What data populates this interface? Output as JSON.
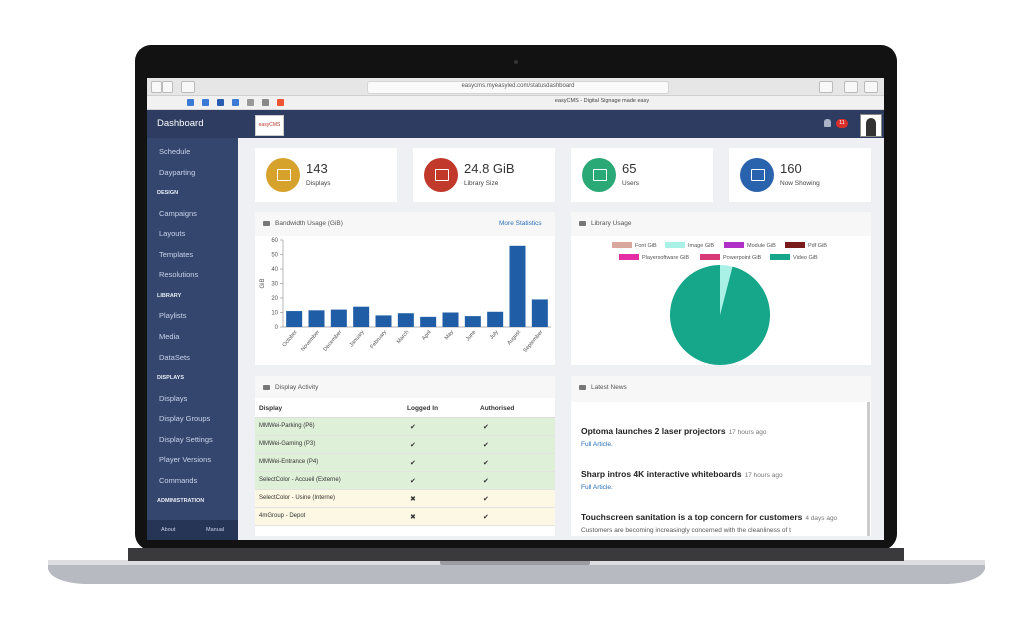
{
  "browser": {
    "url": "easycms.myeasyled.com/statusdashboard",
    "tab_title": "easyCMS - Digital Signage made easy"
  },
  "header": {
    "title": "Dashboard",
    "logo": "easyCMS",
    "notifications": 11
  },
  "sidebar": {
    "items": [
      {
        "label": "Schedule"
      },
      {
        "label": "Dayparting"
      },
      {
        "label": "DESIGN",
        "section": true
      },
      {
        "label": "Campaigns"
      },
      {
        "label": "Layouts"
      },
      {
        "label": "Templates"
      },
      {
        "label": "Resolutions"
      },
      {
        "label": "LIBRARY",
        "section": true
      },
      {
        "label": "Playlists"
      },
      {
        "label": "Media"
      },
      {
        "label": "DataSets"
      },
      {
        "label": "DISPLAYS",
        "section": true
      },
      {
        "label": "Displays"
      },
      {
        "label": "Display Groups"
      },
      {
        "label": "Display Settings"
      },
      {
        "label": "Player Versions"
      },
      {
        "label": "Commands"
      },
      {
        "label": "ADMINISTRATION",
        "section": true
      }
    ],
    "footer": [
      "About",
      "Manual"
    ]
  },
  "stats": [
    {
      "value": 143,
      "label": "Displays",
      "color": "#d6a22b"
    },
    {
      "value": "24.8 GiB",
      "label": "Library Size",
      "color": "#c0392b"
    },
    {
      "value": 65,
      "label": "Users",
      "color": "#2aa876"
    },
    {
      "value": 160,
      "label": "Now Showing",
      "color": "#2a63ad"
    }
  ],
  "bandwidth_link": "More Statistics",
  "chart_data": [
    {
      "type": "bar",
      "title": "Bandwidth Usage (GiB)",
      "y_label": "GiB",
      "categories": [
        "October",
        "November",
        "December",
        "January",
        "February",
        "March",
        "April",
        "May",
        "June",
        "July",
        "August",
        "September"
      ],
      "values": [
        11,
        11.5,
        12,
        14,
        8,
        9.5,
        7,
        10,
        7.5,
        10.5,
        56,
        19
      ],
      "color": "#1f5ea6",
      "ylim": [
        0,
        60
      ],
      "yticks": [
        0,
        10,
        20,
        30,
        40,
        50,
        60
      ]
    },
    {
      "type": "pie",
      "title": "Library Usage",
      "categories": [
        "Font GiB",
        "Image GiB",
        "Module GiB",
        "Pdf GiB",
        "Playersoftware GiB",
        "Powerpoint GiB",
        "Video GiB"
      ],
      "values": [
        0,
        1.0,
        0,
        0,
        0,
        0,
        23.8
      ],
      "colors": [
        "#d9a79c",
        "#a9f0e6",
        "#b02fc4",
        "#7a1b1b",
        "#e62ca4",
        "#d83a78",
        "#16a68a"
      ]
    }
  ],
  "display_activity": {
    "title": "Display Activity",
    "columns": [
      "Display",
      "Logged In",
      "Authorised"
    ],
    "rows": [
      [
        "MMWei-Parking (P6)",
        "✔",
        "✔"
      ],
      [
        "MMWei-Gaming (P3)",
        "✔",
        "✔"
      ],
      [
        "MMWei-Entrance (P4)",
        "✔",
        "✔"
      ],
      [
        "SelectColor - Accueil (Externe)",
        "✔",
        "✔"
      ],
      [
        "SelectColor - Usine (Interne)",
        "✖",
        "✔"
      ],
      [
        "4mGroup - Depot",
        "✖",
        "✔"
      ]
    ],
    "row_colors": [
      "#dff0d8",
      "#dff0d8",
      "#dff0d8",
      "#dff0d8",
      "#fcf8e3",
      "#fcf8e3"
    ]
  },
  "news": {
    "title": "Latest News",
    "items": [
      {
        "title": "Optoma launches 2 laser projectors",
        "time": "17 hours ago",
        "link": "Full Article."
      },
      {
        "title": "Sharp intros 4K interactive whiteboards",
        "time": "17 hours ago",
        "link": "Full Article."
      },
      {
        "title": "Touchscreen sanitation is a top concern for customers",
        "time": "4 days ago",
        "excerpt": "Customers are becoming increasingly concerned with the cleanliness of t"
      }
    ]
  }
}
